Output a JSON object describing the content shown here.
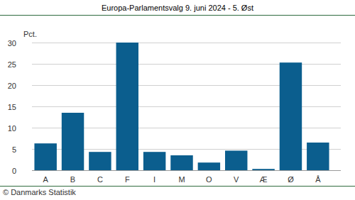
{
  "chart_data": {
    "type": "bar",
    "title": "Europa-Parlamentsvalg 9. juni 2024 - 5. Øst",
    "ylabel": "Pct.",
    "annotations": [
      "© Danmarks Statistik"
    ],
    "categories": [
      "A",
      "B",
      "C",
      "F",
      "I",
      "M",
      "O",
      "V",
      "Æ",
      "Ø",
      "Å"
    ],
    "values": [
      6.3,
      13.5,
      4.3,
      30.0,
      4.3,
      3.5,
      1.8,
      4.6,
      0.3,
      25.3,
      6.5
    ],
    "color": "#0b5e8e",
    "ylim": [
      0,
      30
    ],
    "yticks": [
      0,
      5,
      10,
      15,
      20,
      25,
      30
    ],
    "grid": true
  }
}
